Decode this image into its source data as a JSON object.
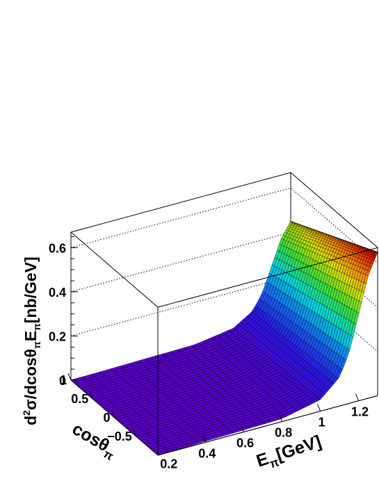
{
  "chart_data": {
    "type": "surface",
    "title": "",
    "xlabel": {
      "main": "E",
      "sub": "π",
      "rest": "[GeV]"
    },
    "ylabel": {
      "main": "cosθ",
      "sub": "π"
    },
    "zlabel": {
      "p1": "d",
      "sup": "2",
      "p2": "σ/dcosθ",
      "sub1": "π",
      "p3": "E",
      "sub2": "π",
      "p4": "[nb/GeV]"
    },
    "xlim": [
      0.15,
      1.3
    ],
    "ylim": [
      -1,
      1
    ],
    "zlim": [
      0,
      0.67
    ],
    "x_ticks": [
      "0.2",
      "0.4",
      "0.6",
      "0.8",
      "1",
      "1.2"
    ],
    "x_tick_values": [
      0.2,
      0.4,
      0.6,
      0.8,
      1.0,
      1.2
    ],
    "y_ticks": [
      "1",
      "0.5",
      "0",
      "−0.5"
    ],
    "y_tick_values": [
      1,
      0.5,
      0,
      -0.5
    ],
    "z_ticks": [
      "0",
      "0.2",
      "0.4",
      "0.6"
    ],
    "z_tick_values": [
      0,
      0.2,
      0.4,
      0.6
    ],
    "grid": true,
    "colormap": "rainbow",
    "surface_edges_at_xmax": [
      {
        "cos": 1.0,
        "value": 0.45
      },
      {
        "cos": -1.0,
        "value": 0.65
      }
    ],
    "surface_profile_along_x": [
      {
        "x": 0.15,
        "fraction": 0.0
      },
      {
        "x": 0.8,
        "fraction": 0.02
      },
      {
        "x": 1.0,
        "fraction": 0.08
      },
      {
        "x": 1.1,
        "fraction": 0.2
      },
      {
        "x": 1.15,
        "fraction": 0.35
      },
      {
        "x": 1.2,
        "fraction": 0.6
      },
      {
        "x": 1.25,
        "fraction": 0.85
      },
      {
        "x": 1.3,
        "fraction": 1.0
      }
    ]
  }
}
